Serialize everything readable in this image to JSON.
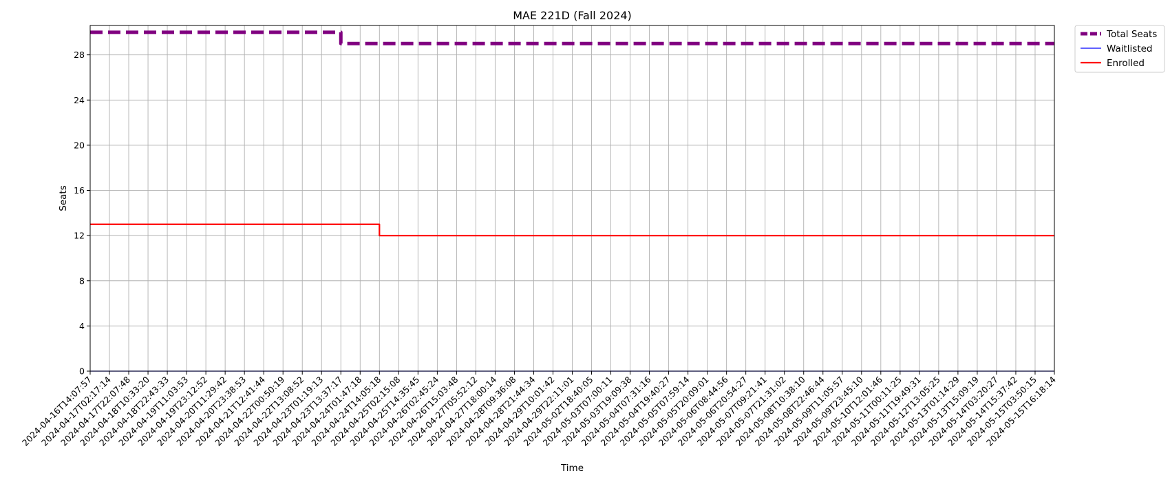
{
  "chart_data": {
    "type": "line",
    "title": "MAE 221D (Fall 2024)",
    "xlabel": "Time",
    "ylabel": "Seats",
    "ylim": [
      0,
      30.6
    ],
    "yticks": [
      0,
      4,
      8,
      12,
      16,
      20,
      24,
      28
    ],
    "grid": true,
    "legend_position": "outside-top-right",
    "x_ticks": [
      "2024-04-16T14:07:57",
      "2024-04-17T02:17:14",
      "2024-04-17T22:07:48",
      "2024-04-18T10:33:20",
      "2024-04-18T22:43:33",
      "2024-04-19T11:03:53",
      "2024-04-19T23:12:52",
      "2024-04-20T11:29:42",
      "2024-04-20T23:38:53",
      "2024-04-21T12:41:44",
      "2024-04-22T00:50:19",
      "2024-04-22T13:08:52",
      "2024-04-23T01:19:13",
      "2024-04-23T13:37:17",
      "2024-04-24T01:47:18",
      "2024-04-24T14:05:18",
      "2024-04-25T02:15:08",
      "2024-04-25T14:35:45",
      "2024-04-26T02:45:24",
      "2024-04-26T15:03:48",
      "2024-04-27T05:52:12",
      "2024-04-27T18:00:14",
      "2024-04-28T09:36:08",
      "2024-04-28T21:44:34",
      "2024-04-29T10:01:42",
      "2024-04-29T22:11:01",
      "2024-05-02T18:40:05",
      "2024-05-03T07:00:11",
      "2024-05-03T19:09:38",
      "2024-05-04T07:31:16",
      "2024-05-04T19:40:27",
      "2024-05-05T07:59:14",
      "2024-05-05T20:09:01",
      "2024-05-06T08:44:56",
      "2024-05-06T20:54:27",
      "2024-05-07T09:21:41",
      "2024-05-07T21:31:02",
      "2024-05-08T10:38:10",
      "2024-05-08T22:46:44",
      "2024-05-09T11:05:57",
      "2024-05-09T23:45:10",
      "2024-05-10T12:01:46",
      "2024-05-11T00:11:25",
      "2024-05-11T19:49:31",
      "2024-05-12T13:05:25",
      "2024-05-13T01:14:29",
      "2024-05-13T15:09:19",
      "2024-05-14T03:20:27",
      "2024-05-14T15:37:42",
      "2024-05-15T03:50:15",
      "2024-05-15T16:18:14"
    ],
    "series": [
      {
        "name": "Total Seats",
        "color": "#800080",
        "style": "dashed",
        "points": [
          {
            "x": "2024-04-16T14:07:57",
            "y": 30
          },
          {
            "x": "2024-04-23T13:37:17",
            "y": 30
          },
          {
            "x": "2024-04-23T13:37:17",
            "y": 29
          },
          {
            "x": "2024-05-15T16:18:14",
            "y": 29
          }
        ]
      },
      {
        "name": "Waitlisted",
        "color": "#0000ff",
        "style": "solid",
        "points": [
          {
            "x": "2024-04-16T14:07:57",
            "y": 0
          },
          {
            "x": "2024-05-15T16:18:14",
            "y": 0
          }
        ]
      },
      {
        "name": "Enrolled",
        "color": "#ff0000",
        "style": "solid",
        "points": [
          {
            "x": "2024-04-16T14:07:57",
            "y": 13
          },
          {
            "x": "2024-04-24T14:05:18",
            "y": 13
          },
          {
            "x": "2024-04-24T14:05:18",
            "y": 12
          },
          {
            "x": "2024-05-15T16:18:14",
            "y": 12
          }
        ]
      }
    ]
  }
}
